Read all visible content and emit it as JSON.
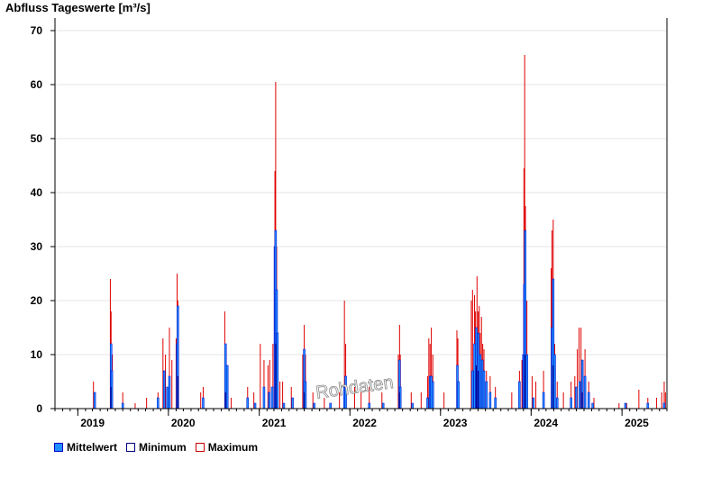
{
  "chart_data": {
    "type": "bar",
    "title": "Abfluss Tageswerte [m³/s]",
    "xlabel": "",
    "ylabel": "",
    "ylim": [
      0,
      72
    ],
    "y_ticks": [
      0,
      10,
      20,
      30,
      40,
      50,
      60,
      70
    ],
    "x_ticks": [
      {
        "label": "2019",
        "date": "2019-01-01"
      },
      {
        "label": "2020",
        "date": "2020-01-01"
      },
      {
        "label": "2021",
        "date": "2021-01-01"
      },
      {
        "label": "2022",
        "date": "2022-01-01"
      },
      {
        "label": "2023",
        "date": "2023-01-01"
      },
      {
        "label": "2024",
        "date": "2024-01-01"
      },
      {
        "label": "2025",
        "date": "2025-01-01"
      }
    ],
    "xlim": [
      "2018-10-01",
      "2025-07-01"
    ],
    "grid": true,
    "legend_position": "bottom-left",
    "watermark": "Rohdaten",
    "series": [
      {
        "name": "Mittelwert",
        "color": "#1e90ff",
        "edge": "#0000cc",
        "points": [
          [
            "2019-03-10",
            3
          ],
          [
            "2019-05-15",
            12
          ],
          [
            "2019-05-18",
            7
          ],
          [
            "2019-07-01",
            1
          ],
          [
            "2019-11-20",
            2
          ],
          [
            "2019-12-15",
            7
          ],
          [
            "2019-12-28",
            4
          ],
          [
            "2020-01-05",
            6
          ],
          [
            "2020-02-05",
            12
          ],
          [
            "2020-02-08",
            19
          ],
          [
            "2020-05-20",
            2
          ],
          [
            "2020-08-18",
            12
          ],
          [
            "2020-08-25",
            8
          ],
          [
            "2020-11-15",
            2
          ],
          [
            "2020-12-15",
            1
          ],
          [
            "2021-01-20",
            4
          ],
          [
            "2021-02-10",
            3
          ],
          [
            "2021-02-22",
            4
          ],
          [
            "2021-03-05",
            30
          ],
          [
            "2021-03-08",
            33
          ],
          [
            "2021-03-12",
            22
          ],
          [
            "2021-03-15",
            14
          ],
          [
            "2021-04-10",
            1
          ],
          [
            "2021-05-15",
            2
          ],
          [
            "2021-07-01",
            11
          ],
          [
            "2021-07-06",
            5
          ],
          [
            "2021-08-10",
            1
          ],
          [
            "2021-10-15",
            1
          ],
          [
            "2021-12-10",
            4
          ],
          [
            "2021-12-15",
            6
          ],
          [
            "2022-03-20",
            1
          ],
          [
            "2022-05-15",
            1
          ],
          [
            "2022-07-20",
            9
          ],
          [
            "2022-07-23",
            4
          ],
          [
            "2022-09-10",
            1
          ],
          [
            "2022-11-10",
            2
          ],
          [
            "2022-11-20",
            6
          ],
          [
            "2022-11-25",
            6
          ],
          [
            "2022-12-01",
            5
          ],
          [
            "2023-03-10",
            8
          ],
          [
            "2023-03-14",
            5
          ],
          [
            "2023-05-10",
            7
          ],
          [
            "2023-05-18",
            12
          ],
          [
            "2023-05-25",
            15
          ],
          [
            "2023-06-02",
            14
          ],
          [
            "2023-06-10",
            10
          ],
          [
            "2023-06-18",
            9
          ],
          [
            "2023-06-25",
            7
          ],
          [
            "2023-07-05",
            5
          ],
          [
            "2023-07-20",
            3
          ],
          [
            "2023-08-10",
            2
          ],
          [
            "2023-11-15",
            5
          ],
          [
            "2023-12-01",
            10
          ],
          [
            "2023-12-05",
            23
          ],
          [
            "2023-12-08",
            33
          ],
          [
            "2023-12-15",
            10
          ],
          [
            "2024-01-10",
            2
          ],
          [
            "2024-02-20",
            3
          ],
          [
            "2024-03-25",
            15
          ],
          [
            "2024-03-30",
            24
          ],
          [
            "2024-04-05",
            10
          ],
          [
            "2024-04-15",
            2
          ],
          [
            "2024-06-10",
            2
          ],
          [
            "2024-07-01",
            4
          ],
          [
            "2024-07-15",
            5
          ],
          [
            "2024-07-25",
            9
          ],
          [
            "2024-08-05",
            6
          ],
          [
            "2024-08-20",
            3
          ],
          [
            "2024-09-05",
            1
          ],
          [
            "2025-01-15",
            1
          ],
          [
            "2025-04-15",
            1
          ],
          [
            "2025-06-20",
            1
          ]
        ]
      },
      {
        "name": "Minimum",
        "color": "#ffffff",
        "edge": "#000080",
        "points": [
          [
            "2019-05-15",
            4
          ],
          [
            "2020-02-08",
            6
          ],
          [
            "2020-08-18",
            3
          ],
          [
            "2021-03-08",
            12
          ],
          [
            "2021-07-01",
            3
          ],
          [
            "2022-07-20",
            3
          ],
          [
            "2023-05-25",
            8
          ],
          [
            "2023-06-02",
            7
          ],
          [
            "2023-12-08",
            10
          ],
          [
            "2024-03-30",
            8
          ],
          [
            "2024-07-25",
            3
          ]
        ]
      },
      {
        "name": "Maximum",
        "color": "#ff0000",
        "edge": "#cc0000",
        "points": [
          [
            "2019-03-05",
            5
          ],
          [
            "2019-03-10",
            3
          ],
          [
            "2019-05-12",
            24
          ],
          [
            "2019-05-15",
            18
          ],
          [
            "2019-05-20",
            10
          ],
          [
            "2019-07-01",
            3
          ],
          [
            "2019-08-20",
            1
          ],
          [
            "2019-10-05",
            2
          ],
          [
            "2019-11-20",
            3
          ],
          [
            "2019-12-10",
            13
          ],
          [
            "2019-12-20",
            10
          ],
          [
            "2020-01-05",
            15
          ],
          [
            "2020-01-15",
            9
          ],
          [
            "2020-02-01",
            13
          ],
          [
            "2020-02-05",
            25
          ],
          [
            "2020-02-08",
            20
          ],
          [
            "2020-05-10",
            3
          ],
          [
            "2020-05-20",
            4
          ],
          [
            "2020-08-15",
            18
          ],
          [
            "2020-08-20",
            12
          ],
          [
            "2020-09-10",
            2
          ],
          [
            "2020-11-15",
            4
          ],
          [
            "2020-12-10",
            3
          ],
          [
            "2021-01-05",
            12
          ],
          [
            "2021-01-20",
            9
          ],
          [
            "2021-02-05",
            8
          ],
          [
            "2021-02-12",
            9
          ],
          [
            "2021-02-25",
            12
          ],
          [
            "2021-03-05",
            44
          ],
          [
            "2021-03-08",
            60.5
          ],
          [
            "2021-03-12",
            30
          ],
          [
            "2021-03-15",
            14
          ],
          [
            "2021-03-25",
            5
          ],
          [
            "2021-04-05",
            5
          ],
          [
            "2021-05-10",
            4
          ],
          [
            "2021-06-25",
            10
          ],
          [
            "2021-07-01",
            15.5
          ],
          [
            "2021-07-06",
            10
          ],
          [
            "2021-08-05",
            3
          ],
          [
            "2021-09-20",
            2
          ],
          [
            "2021-11-20",
            3
          ],
          [
            "2021-12-10",
            20
          ],
          [
            "2021-12-15",
            12
          ],
          [
            "2022-01-20",
            4
          ],
          [
            "2022-02-15",
            3
          ],
          [
            "2022-03-20",
            4
          ],
          [
            "2022-05-10",
            3
          ],
          [
            "2022-07-15",
            10
          ],
          [
            "2022-07-20",
            15.5
          ],
          [
            "2022-07-23",
            10
          ],
          [
            "2022-09-05",
            3
          ],
          [
            "2022-10-15",
            3
          ],
          [
            "2022-11-10",
            6
          ],
          [
            "2022-11-15",
            13
          ],
          [
            "2022-11-20",
            12
          ],
          [
            "2022-11-25",
            15
          ],
          [
            "2022-12-01",
            10
          ],
          [
            "2023-01-15",
            3
          ],
          [
            "2023-03-08",
            14.5
          ],
          [
            "2023-03-12",
            13
          ],
          [
            "2023-03-15",
            5
          ],
          [
            "2023-05-05",
            20
          ],
          [
            "2023-05-10",
            22
          ],
          [
            "2023-05-18",
            21
          ],
          [
            "2023-05-22",
            18
          ],
          [
            "2023-05-28",
            24.5
          ],
          [
            "2023-06-02",
            18
          ],
          [
            "2023-06-06",
            19
          ],
          [
            "2023-06-10",
            14
          ],
          [
            "2023-06-15",
            17
          ],
          [
            "2023-06-20",
            12
          ],
          [
            "2023-06-25",
            11
          ],
          [
            "2023-07-05",
            7
          ],
          [
            "2023-07-20",
            6
          ],
          [
            "2023-08-10",
            4
          ],
          [
            "2023-10-15",
            3
          ],
          [
            "2023-11-15",
            7
          ],
          [
            "2023-11-25",
            9
          ],
          [
            "2023-12-03",
            44.5
          ],
          [
            "2023-12-06",
            65.5
          ],
          [
            "2023-12-09",
            37.5
          ],
          [
            "2023-12-15",
            20
          ],
          [
            "2024-01-05",
            6
          ],
          [
            "2024-01-20",
            5
          ],
          [
            "2024-02-20",
            7
          ],
          [
            "2024-03-22",
            26
          ],
          [
            "2024-03-25",
            33
          ],
          [
            "2024-03-30",
            35
          ],
          [
            "2024-04-05",
            12
          ],
          [
            "2024-04-15",
            5
          ],
          [
            "2024-05-10",
            3
          ],
          [
            "2024-06-10",
            5
          ],
          [
            "2024-06-25",
            6
          ],
          [
            "2024-07-05",
            11
          ],
          [
            "2024-07-12",
            15
          ],
          [
            "2024-07-20",
            15
          ],
          [
            "2024-07-28",
            9
          ],
          [
            "2024-08-05",
            11
          ],
          [
            "2024-08-20",
            5
          ],
          [
            "2024-09-10",
            2
          ],
          [
            "2024-12-20",
            1
          ],
          [
            "2025-01-20",
            1
          ],
          [
            "2025-03-10",
            3.5
          ],
          [
            "2025-04-15",
            2
          ],
          [
            "2025-05-20",
            2
          ],
          [
            "2025-06-10",
            3
          ],
          [
            "2025-06-20",
            5
          ],
          [
            "2025-06-25",
            3
          ]
        ]
      }
    ]
  },
  "legend": {
    "items": [
      {
        "label": "Mittelwert",
        "fill": "#1e90ff",
        "border": "#0000cc"
      },
      {
        "label": "Minimum",
        "fill": "#ffffff",
        "border": "#000080"
      },
      {
        "label": "Maximum",
        "fill": "#ffffff",
        "border": "#cc0000"
      }
    ]
  }
}
